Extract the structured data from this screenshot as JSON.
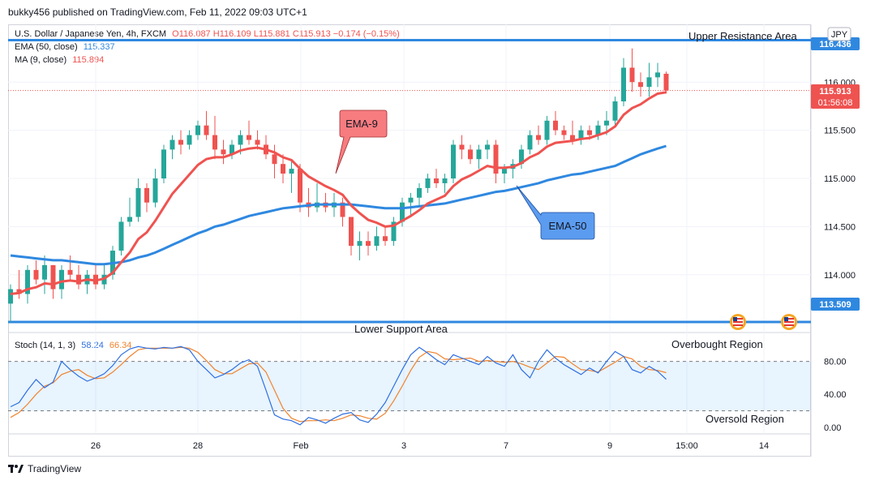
{
  "header": {
    "publish_line": "bukky456 published on TradingView.com, Feb 11, 2022 09:03 UTC+1"
  },
  "symbol_line": {
    "name": "U.S. Dollar / Japanese Yen, 4h, FXCM",
    "open": "O116.087",
    "high": "H116.109",
    "low": "L115.881",
    "close": "C115.913",
    "change": "−0.174 (−0.15%)"
  },
  "indicators": {
    "ema": {
      "label": "EMA (50, close)",
      "value": "115.337",
      "color": "#2f88e0"
    },
    "ma": {
      "label": "MA (9, close)",
      "value": "115.894",
      "color": "#ef5350"
    },
    "stoch": {
      "label": "Stoch (14, 1, 3)",
      "k": "58.24",
      "d": "66.34",
      "k_color": "#2f6fdf",
      "d_color": "#f0832f"
    }
  },
  "currency_badge": "JPY",
  "annotations": {
    "upper_resistance": "Upper Resistance Area",
    "lower_support": "Lower Support Area",
    "ema9_callout": "EMA-9",
    "ema50_callout": "EMA-50",
    "overbought": "Overbought Region",
    "oversold": "Oversold Region"
  },
  "price_labels": {
    "resistance": "116.436",
    "support": "113.509",
    "last_price": "115.913",
    "countdown": "01:56:08"
  },
  "footer": {
    "brand": "TradingView"
  },
  "colors": {
    "up": "#26a69a",
    "down": "#ef5350",
    "level_line": "#2f88e0",
    "grid": "#f0f3fa"
  },
  "chart_data": {
    "type": "candlestick",
    "price_axis": {
      "ticks": [
        "116.000",
        "115.500",
        "115.000",
        "114.500",
        "114.000"
      ],
      "range": [
        113.4,
        116.6
      ]
    },
    "x_tick_labels": [
      "26",
      "28",
      "Feb",
      "3",
      "7",
      "9",
      "15:00",
      "14"
    ],
    "levels": [
      {
        "name": "Upper Resistance Area",
        "value": 116.436
      },
      {
        "name": "Lower Support Area",
        "value": 113.509
      }
    ],
    "candles": [
      [
        113.7,
        113.9,
        113.5,
        113.85
      ],
      [
        113.85,
        114.05,
        113.75,
        113.8
      ],
      [
        113.8,
        114.1,
        113.7,
        114.05
      ],
      [
        114.05,
        114.15,
        113.9,
        113.95
      ],
      [
        113.95,
        114.2,
        113.8,
        114.1
      ],
      [
        114.1,
        114.1,
        113.75,
        113.85
      ],
      [
        113.85,
        114.1,
        113.75,
        114.05
      ],
      [
        114.05,
        114.2,
        113.95,
        114.0
      ],
      [
        114.0,
        114.1,
        113.85,
        113.9
      ],
      [
        113.9,
        114.05,
        113.8,
        114.0
      ],
      [
        114.0,
        114.1,
        113.85,
        113.9
      ],
      [
        113.9,
        114.1,
        113.85,
        114.0
      ],
      [
        114.0,
        114.3,
        113.95,
        114.25
      ],
      [
        114.25,
        114.6,
        114.2,
        114.55
      ],
      [
        114.55,
        114.8,
        114.5,
        114.6
      ],
      [
        114.6,
        115.0,
        114.55,
        114.9
      ],
      [
        114.9,
        114.95,
        114.65,
        114.75
      ],
      [
        114.75,
        115.1,
        114.7,
        115.0
      ],
      [
        115.0,
        115.35,
        114.95,
        115.3
      ],
      [
        115.3,
        115.45,
        115.2,
        115.4
      ],
      [
        115.4,
        115.5,
        115.25,
        115.35
      ],
      [
        115.35,
        115.5,
        115.3,
        115.45
      ],
      [
        115.45,
        115.6,
        115.4,
        115.55
      ],
      [
        115.55,
        115.7,
        115.4,
        115.45
      ],
      [
        115.45,
        115.65,
        115.2,
        115.3
      ],
      [
        115.3,
        115.4,
        115.15,
        115.25
      ],
      [
        115.25,
        115.4,
        115.2,
        115.35
      ],
      [
        115.35,
        115.5,
        115.25,
        115.45
      ],
      [
        115.45,
        115.6,
        115.35,
        115.4
      ],
      [
        115.4,
        115.5,
        115.3,
        115.35
      ],
      [
        115.35,
        115.45,
        115.2,
        115.25
      ],
      [
        115.25,
        115.35,
        115.0,
        115.15
      ],
      [
        115.15,
        115.25,
        114.95,
        115.05
      ],
      [
        115.05,
        115.2,
        114.85,
        115.1
      ],
      [
        115.1,
        115.15,
        114.65,
        114.75
      ],
      [
        114.75,
        114.9,
        114.6,
        114.7
      ],
      [
        114.7,
        114.95,
        114.65,
        114.75
      ],
      [
        114.75,
        114.85,
        114.65,
        114.7
      ],
      [
        114.7,
        114.85,
        114.6,
        114.75
      ],
      [
        114.75,
        114.8,
        114.5,
        114.6
      ],
      [
        114.6,
        114.6,
        114.2,
        114.3
      ],
      [
        114.3,
        114.45,
        114.15,
        114.35
      ],
      [
        114.35,
        114.45,
        114.2,
        114.3
      ],
      [
        114.3,
        114.5,
        114.25,
        114.4
      ],
      [
        114.4,
        114.5,
        114.3,
        114.35
      ],
      [
        114.35,
        114.6,
        114.3,
        114.55
      ],
      [
        114.55,
        114.8,
        114.5,
        114.75
      ],
      [
        114.75,
        114.85,
        114.6,
        114.8
      ],
      [
        114.8,
        114.95,
        114.7,
        114.9
      ],
      [
        114.9,
        115.05,
        114.85,
        115.0
      ],
      [
        115.0,
        115.1,
        114.9,
        114.95
      ],
      [
        114.95,
        115.05,
        114.85,
        115.0
      ],
      [
        115.0,
        115.4,
        114.95,
        115.35
      ],
      [
        115.35,
        115.45,
        115.2,
        115.3
      ],
      [
        115.3,
        115.35,
        115.15,
        115.2
      ],
      [
        115.2,
        115.35,
        115.1,
        115.3
      ],
      [
        115.3,
        115.4,
        115.2,
        115.35
      ],
      [
        115.35,
        115.4,
        114.95,
        115.05
      ],
      [
        115.05,
        115.15,
        114.95,
        115.1
      ],
      [
        115.1,
        115.2,
        115.0,
        115.15
      ],
      [
        115.15,
        115.35,
        115.1,
        115.3
      ],
      [
        115.3,
        115.5,
        115.25,
        115.45
      ],
      [
        115.45,
        115.55,
        115.35,
        115.4
      ],
      [
        115.4,
        115.65,
        115.35,
        115.6
      ],
      [
        115.6,
        115.7,
        115.45,
        115.5
      ],
      [
        115.5,
        115.55,
        115.4,
        115.45
      ],
      [
        115.45,
        115.6,
        115.35,
        115.4
      ],
      [
        115.4,
        115.55,
        115.35,
        115.5
      ],
      [
        115.5,
        115.55,
        115.4,
        115.45
      ],
      [
        115.45,
        115.6,
        115.4,
        115.55
      ],
      [
        115.55,
        115.7,
        115.45,
        115.6
      ],
      [
        115.6,
        115.85,
        115.55,
        115.8
      ],
      [
        115.8,
        116.25,
        115.75,
        116.15
      ],
      [
        116.15,
        116.35,
        115.9,
        116.0
      ],
      [
        116.0,
        116.1,
        115.85,
        115.95
      ],
      [
        115.95,
        116.2,
        115.85,
        116.05
      ],
      [
        116.05,
        116.2,
        115.95,
        116.1
      ],
      [
        116.087,
        116.109,
        115.881,
        115.913
      ]
    ],
    "ema9": [
      113.8,
      113.81,
      113.85,
      113.87,
      113.91,
      113.9,
      113.93,
      113.94,
      113.93,
      113.95,
      113.94,
      113.96,
      114.02,
      114.13,
      114.23,
      114.37,
      114.44,
      114.56,
      114.7,
      114.84,
      114.94,
      115.04,
      115.14,
      115.2,
      115.22,
      115.22,
      115.25,
      115.29,
      115.31,
      115.32,
      115.3,
      115.27,
      115.22,
      115.19,
      115.1,
      115.02,
      114.97,
      114.92,
      114.88,
      114.83,
      114.72,
      114.64,
      114.57,
      114.54,
      114.5,
      114.51,
      114.56,
      114.61,
      114.67,
      114.74,
      114.78,
      114.82,
      114.92,
      114.99,
      115.03,
      115.08,
      115.13,
      115.11,
      115.11,
      115.12,
      115.16,
      115.22,
      115.26,
      115.33,
      115.37,
      115.38,
      115.39,
      115.41,
      115.42,
      115.45,
      115.48,
      115.54,
      115.66,
      115.73,
      115.77,
      115.83,
      115.88,
      115.894
    ],
    "ema50": [
      114.2,
      114.19,
      114.18,
      114.17,
      114.16,
      114.15,
      114.15,
      114.14,
      114.13,
      114.12,
      114.11,
      114.11,
      114.12,
      114.13,
      114.15,
      114.18,
      114.2,
      114.23,
      114.27,
      114.31,
      114.35,
      114.39,
      114.43,
      114.46,
      114.5,
      114.52,
      114.55,
      114.58,
      114.61,
      114.63,
      114.65,
      114.67,
      114.69,
      114.7,
      114.71,
      114.72,
      114.73,
      114.73,
      114.73,
      114.73,
      114.73,
      114.72,
      114.71,
      114.7,
      114.69,
      114.69,
      114.69,
      114.7,
      114.71,
      114.72,
      114.73,
      114.74,
      114.76,
      114.78,
      114.8,
      114.82,
      114.84,
      114.86,
      114.87,
      114.89,
      114.91,
      114.93,
      114.95,
      114.98,
      115.0,
      115.02,
      115.04,
      115.05,
      115.07,
      115.09,
      115.11,
      115.13,
      115.17,
      115.21,
      115.25,
      115.28,
      115.31,
      115.337
    ],
    "stoch": {
      "axis_ticks": [
        "80.00",
        "40.00",
        "0.00"
      ],
      "range": [
        -8,
        115
      ],
      "bands": [
        20,
        80
      ],
      "k": [
        25,
        30,
        45,
        58,
        48,
        55,
        80,
        70,
        62,
        56,
        60,
        65,
        75,
        88,
        95,
        98,
        96,
        95,
        97,
        96,
        98,
        94,
        80,
        70,
        60,
        64,
        70,
        78,
        82,
        74,
        45,
        15,
        10,
        8,
        3,
        12,
        9,
        5,
        11,
        16,
        18,
        9,
        6,
        16,
        30,
        50,
        70,
        88,
        97,
        90,
        82,
        76,
        88,
        84,
        80,
        76,
        86,
        78,
        74,
        88,
        70,
        60,
        80,
        94,
        84,
        76,
        70,
        64,
        72,
        66,
        80,
        92,
        86,
        70,
        66,
        74,
        68,
        58.24
      ],
      "d": [
        12,
        18,
        28,
        40,
        50,
        54,
        64,
        68,
        70,
        63,
        59,
        60,
        67,
        76,
        86,
        94,
        96,
        96,
        96,
        96,
        97,
        96,
        91,
        81,
        70,
        65,
        65,
        71,
        77,
        78,
        67,
        45,
        23,
        11,
        7,
        8,
        8,
        9,
        8,
        11,
        15,
        14,
        11,
        10,
        17,
        32,
        50,
        69,
        85,
        92,
        90,
        83,
        82,
        83,
        84,
        80,
        81,
        80,
        79,
        80,
        77,
        73,
        70,
        78,
        86,
        85,
        77,
        70,
        69,
        67,
        73,
        79,
        86,
        83,
        74,
        70,
        69,
        66.34
      ]
    }
  }
}
